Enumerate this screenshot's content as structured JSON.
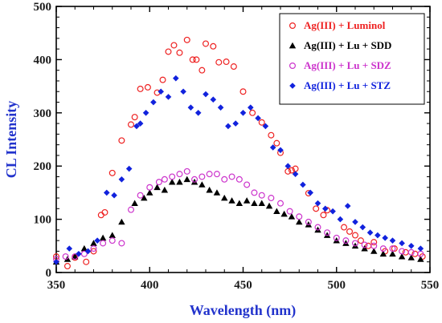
{
  "chart_data": {
    "type": "scatter",
    "xlabel": "Wavelength (nm)",
    "ylabel": "CL Intensity",
    "xlim": [
      350,
      550
    ],
    "ylim": [
      0,
      500
    ],
    "xticks": [
      350,
      400,
      450,
      500,
      550
    ],
    "yticks": [
      0,
      100,
      200,
      300,
      400,
      500
    ],
    "xtick_labels": [
      "350",
      "400",
      "450",
      "500",
      "550"
    ],
    "ytick_labels": [
      "0",
      "100",
      "200",
      "300",
      "400",
      "500"
    ],
    "grid": false,
    "legend_position": "top-right",
    "series": [
      {
        "name": "Ag(III) + Luminol",
        "marker": "open-circle",
        "color": "#ee2222",
        "text_color": "#ee2222",
        "x": [
          350,
          356,
          360,
          366,
          370,
          374,
          376,
          380,
          385,
          390,
          392,
          395,
          399,
          404,
          407,
          410,
          413,
          416,
          420,
          423,
          425,
          428,
          430,
          434,
          437,
          441,
          445,
          450,
          455,
          460,
          465,
          468,
          470,
          474,
          476,
          478,
          485,
          489,
          493,
          495,
          504,
          507,
          510,
          513,
          517,
          520,
          526,
          531,
          537,
          542,
          546
        ],
        "y": [
          30,
          12,
          28,
          20,
          40,
          108,
          113,
          187,
          248,
          278,
          292,
          345,
          348,
          338,
          362,
          415,
          427,
          413,
          437,
          400,
          400,
          380,
          430,
          425,
          395,
          396,
          387,
          340,
          300,
          282,
          258,
          243,
          225,
          190,
          192,
          195,
          149,
          120,
          108,
          117,
          85,
          77,
          70,
          60,
          50,
          57,
          40,
          45,
          38,
          35,
          30
        ]
      },
      {
        "name": "Ag(III) + Lu + SDD",
        "marker": "filled-triangle",
        "color": "#000000",
        "text_color": "#000000",
        "x": [
          350,
          356,
          360,
          365,
          370,
          375,
          380,
          385,
          392,
          397,
          400,
          404,
          408,
          412,
          416,
          420,
          424,
          428,
          432,
          436,
          440,
          444,
          448,
          452,
          456,
          460,
          464,
          468,
          472,
          476,
          480,
          485,
          490,
          495,
          500,
          505,
          510,
          515,
          520,
          525,
          530,
          535,
          540,
          545
        ],
        "y": [
          20,
          25,
          30,
          45,
          55,
          65,
          70,
          95,
          130,
          140,
          150,
          160,
          155,
          170,
          170,
          175,
          170,
          165,
          155,
          150,
          140,
          135,
          130,
          135,
          130,
          130,
          125,
          115,
          110,
          105,
          95,
          90,
          80,
          70,
          60,
          55,
          50,
          45,
          40,
          35,
          35,
          30,
          28,
          25
        ]
      },
      {
        "name": "Ag(III) + Lu + SDZ",
        "marker": "open-circle",
        "color": "#cc33cc",
        "text_color": "#cc33cc",
        "x": [
          350,
          355,
          360,
          365,
          370,
          375,
          380,
          385,
          390,
          395,
          400,
          405,
          408,
          412,
          416,
          420,
          424,
          428,
          432,
          436,
          440,
          444,
          448,
          452,
          456,
          460,
          465,
          470,
          475,
          480,
          485,
          490,
          495,
          500,
          505,
          510,
          515,
          520,
          525,
          530,
          535,
          540,
          545
        ],
        "y": [
          25,
          30,
          30,
          35,
          45,
          55,
          60,
          55,
          118,
          145,
          160,
          170,
          175,
          180,
          185,
          190,
          175,
          180,
          185,
          185,
          175,
          180,
          175,
          165,
          150,
          145,
          140,
          130,
          115,
          105,
          95,
          85,
          75,
          65,
          60,
          55,
          52,
          50,
          45,
          45,
          40,
          38,
          35
        ]
      },
      {
        "name": "Ag(III) + Lu + STZ",
        "marker": "filled-diamond",
        "color": "#1122dd",
        "text_color": "#1122dd",
        "x": [
          350,
          357,
          362,
          367,
          372,
          377,
          381,
          385,
          389,
          393,
          395,
          398,
          402,
          406,
          410,
          414,
          418,
          422,
          426,
          430,
          434,
          438,
          442,
          446,
          450,
          454,
          458,
          462,
          466,
          470,
          474,
          478,
          482,
          486,
          490,
          494,
          498,
          502,
          506,
          510,
          514,
          518,
          522,
          526,
          530,
          535,
          540,
          545
        ],
        "y": [
          20,
          45,
          35,
          40,
          60,
          150,
          145,
          175,
          195,
          275,
          280,
          300,
          320,
          340,
          330,
          365,
          340,
          310,
          300,
          335,
          325,
          310,
          275,
          280,
          300,
          310,
          290,
          275,
          235,
          230,
          200,
          185,
          165,
          150,
          130,
          120,
          115,
          100,
          125,
          95,
          85,
          75,
          70,
          65,
          60,
          55,
          50,
          45
        ]
      }
    ]
  }
}
